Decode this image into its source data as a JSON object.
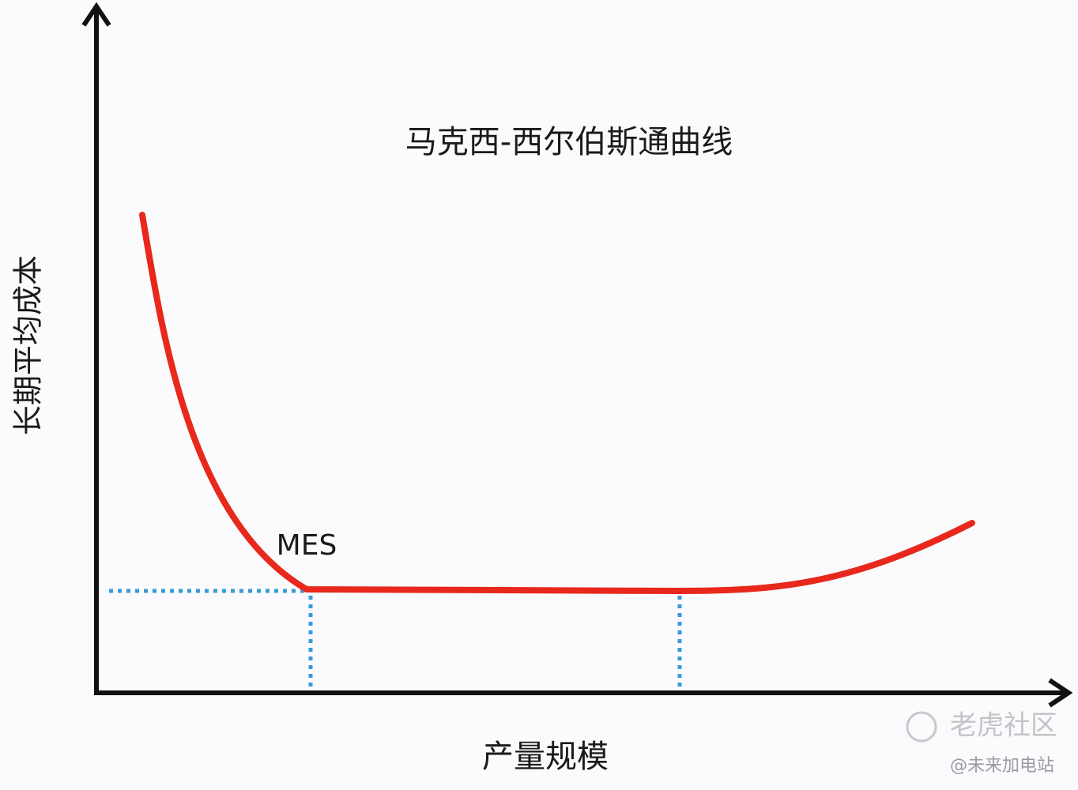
{
  "title": "马克西-西尔伯斯通曲线",
  "y_axis_label": "长期平均成本",
  "x_axis_label": "产量规模",
  "annotation": "MES",
  "watermark": {
    "brand": "老虎社区",
    "author": "@未来加电站"
  }
}
